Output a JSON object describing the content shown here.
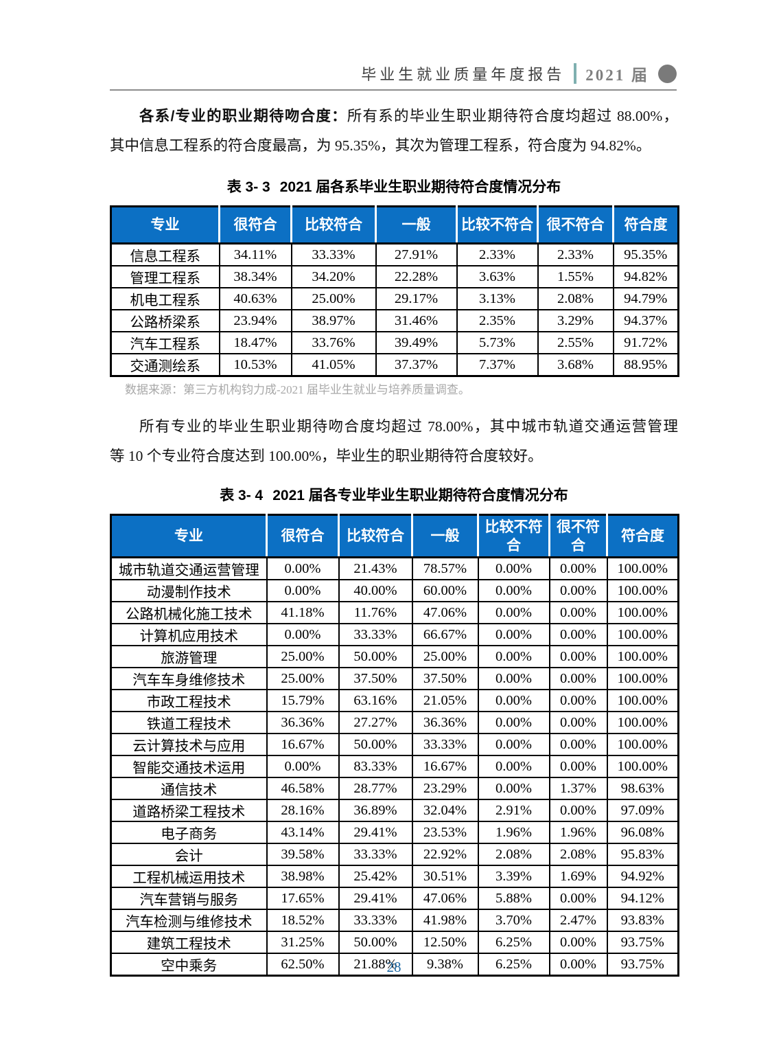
{
  "header": {
    "report_title": "毕业生就业质量年度报告",
    "edition": "2021 届"
  },
  "para1": {
    "lead": "各系/专业的职业期待吻合度：",
    "line1_rest": "所有系的毕业生职业期待符合度均超过 88.00%，",
    "line2": "其中信息工程系的符合度最高，为 95.35%，其次为管理工程系，符合度为 94.82%。"
  },
  "table1": {
    "caption_label": "表 3- 3",
    "caption_text": "2021 届各系毕业生职业期待符合度情况分布",
    "headers": [
      "专业",
      "很符合",
      "比较符合",
      "一般",
      "比较不符合",
      "很不符合",
      "符合度"
    ],
    "rows": [
      [
        "信息工程系",
        "34.11%",
        "33.33%",
        "27.91%",
        "2.33%",
        "2.33%",
        "95.35%"
      ],
      [
        "管理工程系",
        "38.34%",
        "34.20%",
        "22.28%",
        "3.63%",
        "1.55%",
        "94.82%"
      ],
      [
        "机电工程系",
        "40.63%",
        "25.00%",
        "29.17%",
        "3.13%",
        "2.08%",
        "94.79%"
      ],
      [
        "公路桥梁系",
        "23.94%",
        "38.97%",
        "31.46%",
        "2.35%",
        "3.29%",
        "94.37%"
      ],
      [
        "汽车工程系",
        "18.47%",
        "33.76%",
        "39.49%",
        "5.73%",
        "2.55%",
        "91.72%"
      ],
      [
        "交通测绘系",
        "10.53%",
        "41.05%",
        "37.37%",
        "7.37%",
        "3.68%",
        "88.95%"
      ]
    ],
    "source_note": "数据来源：第三方机构钧力成-2021 届毕业生就业与培养质量调查。"
  },
  "para2": {
    "line1": "所有专业的毕业生职业期待吻合度均超过 78.00%，其中城市轨道交通运营管理",
    "line2": "等 10 个专业符合度达到 100.00%，毕业生的职业期待符合度较好。"
  },
  "table2": {
    "caption_label": "表 3- 4",
    "caption_text": "2021 届各专业毕业生职业期待符合度情况分布",
    "headers": [
      "专业",
      "很符合",
      "比较符合",
      "一般",
      "比较不符合",
      "很不符合",
      "符合度"
    ],
    "rows": [
      [
        "城市轨道交通运营管理",
        "0.00%",
        "21.43%",
        "78.57%",
        "0.00%",
        "0.00%",
        "100.00%"
      ],
      [
        "动漫制作技术",
        "0.00%",
        "40.00%",
        "60.00%",
        "0.00%",
        "0.00%",
        "100.00%"
      ],
      [
        "公路机械化施工技术",
        "41.18%",
        "11.76%",
        "47.06%",
        "0.00%",
        "0.00%",
        "100.00%"
      ],
      [
        "计算机应用技术",
        "0.00%",
        "33.33%",
        "66.67%",
        "0.00%",
        "0.00%",
        "100.00%"
      ],
      [
        "旅游管理",
        "25.00%",
        "50.00%",
        "25.00%",
        "0.00%",
        "0.00%",
        "100.00%"
      ],
      [
        "汽车车身维修技术",
        "25.00%",
        "37.50%",
        "37.50%",
        "0.00%",
        "0.00%",
        "100.00%"
      ],
      [
        "市政工程技术",
        "15.79%",
        "63.16%",
        "21.05%",
        "0.00%",
        "0.00%",
        "100.00%"
      ],
      [
        "铁道工程技术",
        "36.36%",
        "27.27%",
        "36.36%",
        "0.00%",
        "0.00%",
        "100.00%"
      ],
      [
        "云计算技术与应用",
        "16.67%",
        "50.00%",
        "33.33%",
        "0.00%",
        "0.00%",
        "100.00%"
      ],
      [
        "智能交通技术运用",
        "0.00%",
        "83.33%",
        "16.67%",
        "0.00%",
        "0.00%",
        "100.00%"
      ],
      [
        "通信技术",
        "46.58%",
        "28.77%",
        "23.29%",
        "0.00%",
        "1.37%",
        "98.63%"
      ],
      [
        "道路桥梁工程技术",
        "28.16%",
        "36.89%",
        "32.04%",
        "2.91%",
        "0.00%",
        "97.09%"
      ],
      [
        "电子商务",
        "43.14%",
        "29.41%",
        "23.53%",
        "1.96%",
        "1.96%",
        "96.08%"
      ],
      [
        "会计",
        "39.58%",
        "33.33%",
        "22.92%",
        "2.08%",
        "2.08%",
        "95.83%"
      ],
      [
        "工程机械运用技术",
        "38.98%",
        "25.42%",
        "30.51%",
        "3.39%",
        "1.69%",
        "94.92%"
      ],
      [
        "汽车营销与服务",
        "17.65%",
        "29.41%",
        "47.06%",
        "5.88%",
        "0.00%",
        "94.12%"
      ],
      [
        "汽车检测与维修技术",
        "18.52%",
        "33.33%",
        "41.98%",
        "3.70%",
        "2.47%",
        "93.83%"
      ],
      [
        "建筑工程技术",
        "31.25%",
        "50.00%",
        "12.50%",
        "6.25%",
        "0.00%",
        "93.75%"
      ],
      [
        "空中乘务",
        "62.50%",
        "21.88%",
        "9.38%",
        "6.25%",
        "0.00%",
        "93.75%"
      ]
    ]
  },
  "page_number": "28",
  "colors": {
    "table_header_bg": "#0c70c4",
    "header_accent_teal": "#7fb0b0",
    "header_gray": "#7f7f7f",
    "source_note_gray": "#a8a8a8",
    "page_number_blue": "#1f6aa5"
  }
}
